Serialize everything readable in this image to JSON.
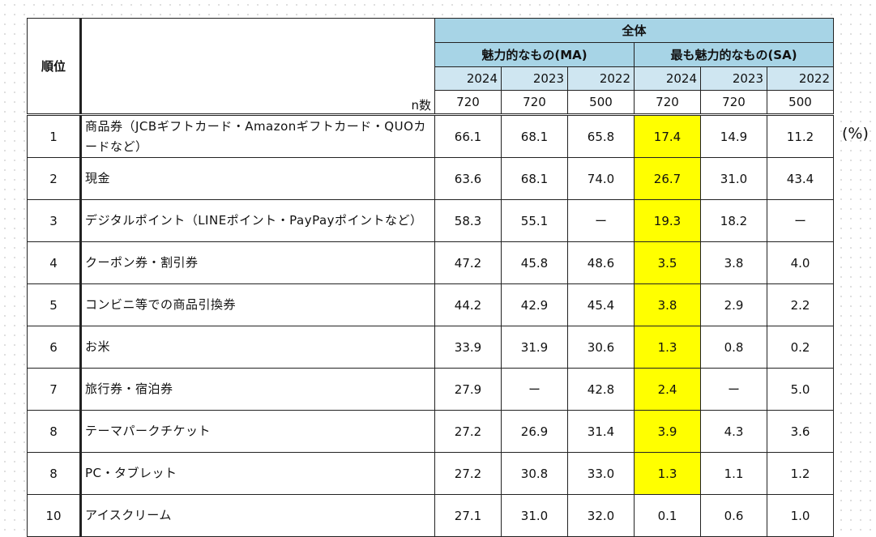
{
  "header": {
    "rank_label": "順位",
    "all_label": "全体",
    "ma_label": "魅力的なもの(MA)",
    "sa_label": "最も魅力的なもの(SA)",
    "years_ma": [
      "2024",
      "2023",
      "2022"
    ],
    "years_sa": [
      "2024",
      "2023",
      "2022"
    ],
    "n_label": "n数",
    "n_ma": [
      "720",
      "720",
      "500"
    ],
    "n_sa": [
      "720",
      "720",
      "500"
    ]
  },
  "unit": "(%)",
  "rows": [
    {
      "rank": "1",
      "item": "商品券（JCBギフトカード・Amazonギフトカード・QUOカードなど）",
      "ma": [
        "66.1",
        "68.1",
        "65.8"
      ],
      "sa": [
        "17.4",
        "14.9",
        "11.2"
      ]
    },
    {
      "rank": "2",
      "item": "現金",
      "ma": [
        "63.6",
        "68.1",
        "74.0"
      ],
      "sa": [
        "26.7",
        "31.0",
        "43.4"
      ]
    },
    {
      "rank": "3",
      "item": "デジタルポイント（LINEポイント・PayPayポイントなど）",
      "ma": [
        "58.3",
        "55.1",
        "ー"
      ],
      "sa": [
        "19.3",
        "18.2",
        "ー"
      ]
    },
    {
      "rank": "4",
      "item": "クーポン券・割引券",
      "ma": [
        "47.2",
        "45.8",
        "48.6"
      ],
      "sa": [
        "3.5",
        "3.8",
        "4.0"
      ]
    },
    {
      "rank": "5",
      "item": "コンビニ等での商品引換券",
      "ma": [
        "44.2",
        "42.9",
        "45.4"
      ],
      "sa": [
        "3.8",
        "2.9",
        "2.2"
      ]
    },
    {
      "rank": "6",
      "item": "お米",
      "ma": [
        "33.9",
        "31.9",
        "30.6"
      ],
      "sa": [
        "1.3",
        "0.8",
        "0.2"
      ]
    },
    {
      "rank": "7",
      "item": "旅行券・宿泊券",
      "ma": [
        "27.9",
        "ー",
        "42.8"
      ],
      "sa": [
        "2.4",
        "ー",
        "5.0"
      ]
    },
    {
      "rank": "8",
      "item": "テーマパークチケット",
      "ma": [
        "27.2",
        "26.9",
        "31.4"
      ],
      "sa": [
        "3.9",
        "4.3",
        "3.6"
      ]
    },
    {
      "rank": "8",
      "item": "PC・タブレット",
      "ma": [
        "27.2",
        "30.8",
        "33.0"
      ],
      "sa": [
        "1.3",
        "1.1",
        "1.2"
      ]
    },
    {
      "rank": "10",
      "item": "アイスクリーム",
      "ma": [
        "27.1",
        "31.0",
        "32.0"
      ],
      "sa": [
        "0.1",
        "0.6",
        "1.0"
      ]
    }
  ],
  "colors": {
    "header_blue": "#a7d4e6",
    "year_blue": "#cfe6f1",
    "highlight": "#ffff00"
  }
}
